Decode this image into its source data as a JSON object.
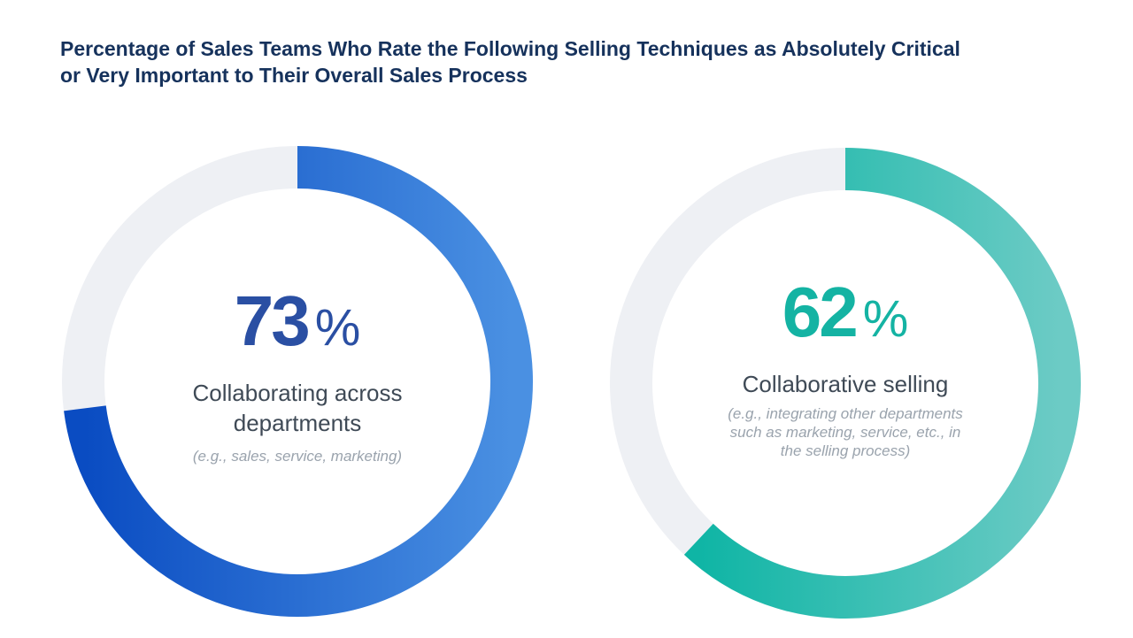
{
  "chart_data": {
    "type": "pie",
    "title_lines": [
      "Percentage of Sales Teams Who Rate the Following Selling Techniques as Absolutely Critical",
      "or Very Important to Their Overall Sales Process"
    ],
    "donuts": [
      {
        "value": 73,
        "value_text": "73",
        "unit": "%",
        "label_lines": [
          "Collaborating across",
          "departments"
        ],
        "note": "(e.g., sales, service, marketing)",
        "color_start": "#0a4cc2",
        "color_end": "#4a90e2",
        "track_color": "#eef0f4",
        "number_color": "#2a4fa3"
      },
      {
        "value": 62,
        "value_text": "62",
        "unit": "%",
        "label_lines": [
          "Collaborative selling"
        ],
        "note_lines": [
          "(e.g., integrating other departments",
          "such as marketing, service, etc., in",
          "the selling process)"
        ],
        "color_start": "#0fb5a5",
        "color_end": "#6ccbc5",
        "track_color": "#eef0f4",
        "number_color": "#14b3a3"
      }
    ]
  }
}
